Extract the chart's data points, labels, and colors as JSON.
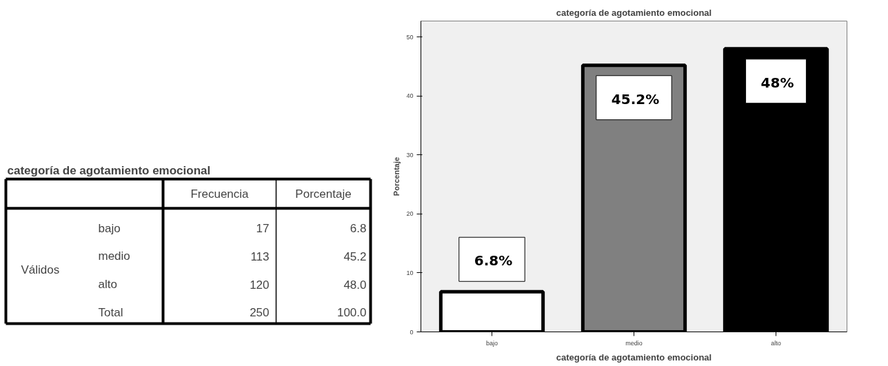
{
  "chart_data": [
    {
      "type": "other",
      "title": "categoría de agotamiento emocional",
      "annotations": [
        "Frecuencia",
        "Porcentaje",
        "Válidos",
        "bajo",
        "17",
        "6.8",
        "medio",
        "113",
        "45.2",
        "alto",
        "120",
        "48.0",
        "Total",
        "250",
        "100.0"
      ]
    },
    {
      "type": "bar",
      "title": "categoría de agotamiento emocional",
      "xlabel": "categoría de agotamiento emocional",
      "ylabel": "Porcentaje",
      "categories": [
        "bajo",
        "medio",
        "alto"
      ],
      "values": [
        6.8,
        45.2,
        48
      ],
      "colors": [
        "#ffffff",
        "#808080",
        "#000000"
      ],
      "value_labels": [
        "6.8%",
        "45.2%",
        "48%"
      ],
      "ylim": [
        0,
        52.7
      ],
      "yticks": [
        0,
        10,
        20,
        30,
        40,
        50
      ],
      "grid": false
    }
  ]
}
